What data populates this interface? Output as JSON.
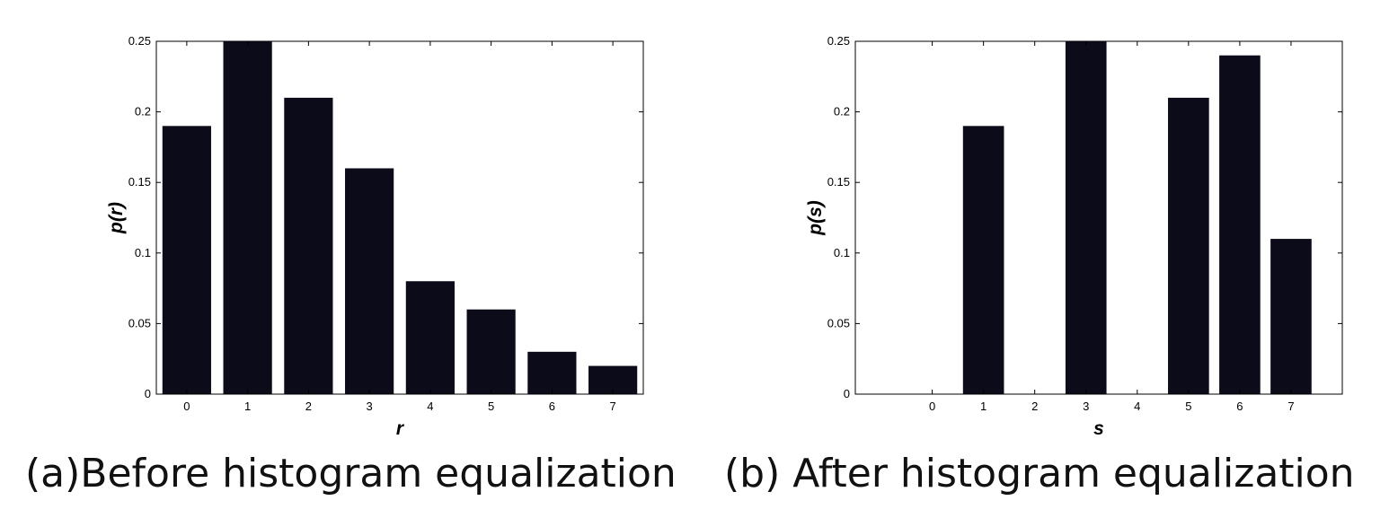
{
  "chart_data": [
    {
      "type": "bar",
      "categories": [
        "0",
        "1",
        "2",
        "3",
        "4",
        "5",
        "6",
        "7"
      ],
      "values": [
        0.19,
        0.25,
        0.21,
        0.16,
        0.08,
        0.06,
        0.03,
        0.02
      ],
      "xlabel": "r",
      "ylabel": "p(r)",
      "ylim": [
        0,
        0.25
      ],
      "yticks": [
        "0",
        "0.05",
        "0.1",
        "0.15",
        "0.2",
        "0.25"
      ],
      "xlim": [
        -0.5,
        7.5
      ],
      "grid": false,
      "bar_color": "#0b0b1a",
      "caption": "(a)Before histogram equalization"
    },
    {
      "type": "bar",
      "categories": [
        "0",
        "1",
        "2",
        "3",
        "4",
        "5",
        "6",
        "7"
      ],
      "values": [
        0,
        0.19,
        0,
        0.25,
        0,
        0.21,
        0.24,
        0.11
      ],
      "xlabel": "s",
      "ylabel": "p(s)",
      "ylim": [
        0,
        0.25
      ],
      "yticks": [
        "0",
        "0.05",
        "0.1",
        "0.15",
        "0.2",
        "0.25"
      ],
      "xlim": [
        -1.5,
        8
      ],
      "grid": false,
      "bar_color": "#0b0b1a",
      "caption": "(b) After histogram equalization"
    }
  ]
}
